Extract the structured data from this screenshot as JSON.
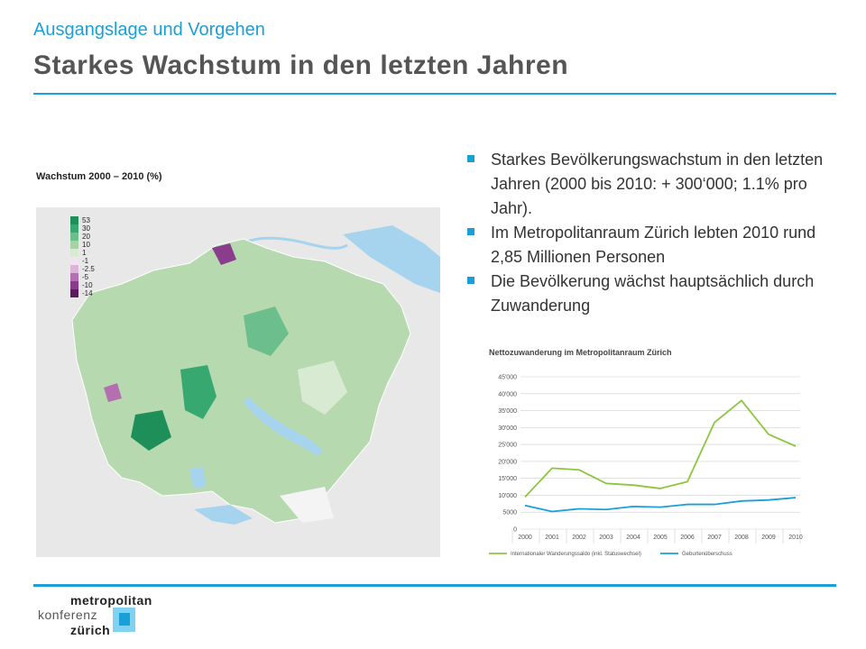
{
  "header": {
    "subtitle": "Ausgangslage und Vorgehen",
    "title": "Starkes Wachstum in den letzten Jahren"
  },
  "map": {
    "title": "Wachstum 2000 – 2010 (%)",
    "legend": [
      {
        "label": "53",
        "color": "#1f8f5a"
      },
      {
        "label": "30",
        "color": "#36a870"
      },
      {
        "label": "20",
        "color": "#6cbf8d"
      },
      {
        "label": "10",
        "color": "#a6d3a6"
      },
      {
        "label": "1",
        "color": "#d9ead3"
      },
      {
        "label": "-1",
        "color": "#f2e3f0"
      },
      {
        "label": "-2.5",
        "color": "#dcb5d8"
      },
      {
        "label": "-5",
        "color": "#b46fb0"
      },
      {
        "label": "-10",
        "color": "#8a3d8c"
      },
      {
        "label": "-14",
        "color": "#5a1a5e"
      }
    ]
  },
  "bullets": [
    "Starkes Bevölkerungswachstum in den letzten Jahren (2000 bis 2010: + 300‘000; 1.1% pro Jahr).",
    "Im Metropolitanraum Zürich lebten 2010 rund 2,85 Millionen Personen",
    "Die Bevölkerung wächst hauptsächlich durch Zuwanderung"
  ],
  "chart_data": {
    "type": "line",
    "title": "Nettozuwanderung im Metropolitanraum Zürich",
    "categories": [
      "2000",
      "2001",
      "2002",
      "2003",
      "2004",
      "2005",
      "2006",
      "2007",
      "2008",
      "2009",
      "2010"
    ],
    "yticks": [
      "0",
      "5000",
      "10'000",
      "15'000",
      "20'000",
      "25'000",
      "30'000",
      "35'000",
      "40'000",
      "45'000"
    ],
    "ylim": [
      0,
      45000
    ],
    "grid": true,
    "legend_position": "bottom",
    "series": [
      {
        "name": "Internationaler Wanderungssaldo (inkl. Statuswechsel)",
        "color": "#8cc63f",
        "values": [
          9500,
          18000,
          17500,
          13500,
          13000,
          12000,
          14000,
          31500,
          38000,
          28000,
          24500
        ]
      },
      {
        "name": "Geburtenüberschuss",
        "color": "#1b9fd9",
        "values": [
          7000,
          5200,
          6000,
          5800,
          6700,
          6500,
          7300,
          7300,
          8300,
          8600,
          9300
        ]
      }
    ]
  },
  "logo": {
    "line1": "metropolitan",
    "line2": "konferenz",
    "line3": "zürich"
  }
}
